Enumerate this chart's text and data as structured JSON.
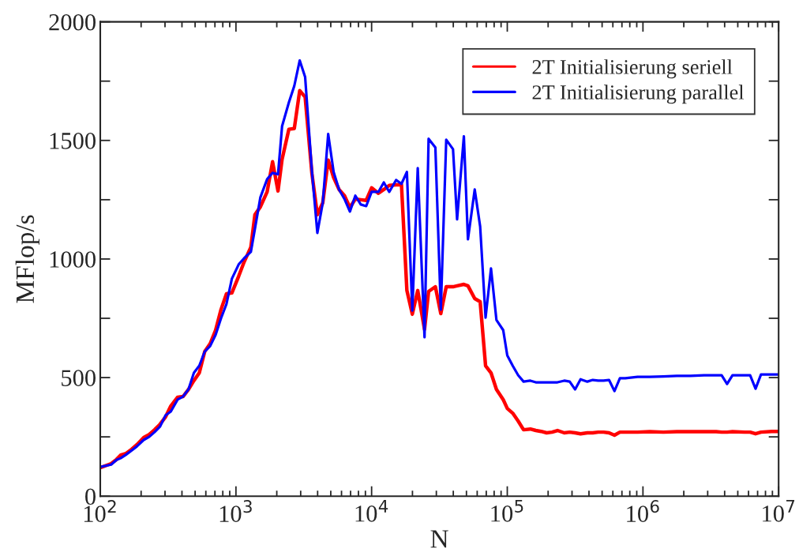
{
  "chart_data": {
    "type": "line",
    "xlabel": "N",
    "ylabel": "MFlop/s",
    "log": "x",
    "xlim": [
      100,
      10000000
    ],
    "ylim": [
      0,
      2000
    ],
    "xticks": [
      {
        "value": 100,
        "label": "10$^{2}$"
      },
      {
        "value": 1000,
        "label": "10$^{3}$"
      },
      {
        "value": 10000,
        "label": "10$^{4}$"
      },
      {
        "value": 100000,
        "label": "10$^{5}$"
      },
      {
        "value": 1000000,
        "label": "10$^{6}$"
      },
      {
        "value": 10000000,
        "label": "10$^{7}$"
      }
    ],
    "yticks": [
      0,
      {
        "value": 250,
        "label": null
      },
      500,
      {
        "value": 750,
        "label": null
      },
      1000,
      {
        "value": 1250,
        "label": null
      },
      1500,
      {
        "value": 1750,
        "label": null
      },
      2000
    ],
    "grid": false,
    "legend": "top right",
    "marker": "none",
    "line_style": "solid",
    "x": [
      100,
      120.2,
      131.8,
      141.3,
      154.9,
      169.8,
      186.2,
      208.9,
      229.1,
      251.2,
      275.4,
      302,
      331.1,
      371.5,
      407.4,
      446.7,
      489.8,
      537,
      588.8,
      645.7,
      707.9,
      776.2,
      851.1,
      933.3,
      1047,
      1148,
      1288,
      1380,
      1514,
      1698,
      1862,
      2042,
      2188,
      2455,
      2692,
      2951,
      3236,
      3631,
      3981,
      4365,
      4786,
      5248,
      5754,
      6310,
      6918,
      7586,
      8318,
      9120,
      10000,
      11220,
      12300,
      13490,
      15140,
      16600,
      18200,
      19950,
      21880,
      24550,
      26300,
      29510,
      32360,
      35480,
      39810,
      42660,
      47860,
      51290,
      57540,
      63100,
      69180,
      75860,
      83180,
      93330,
      100000,
      109600,
      120200,
      131800,
      147900,
      162200,
      177800,
      195000,
      213800,
      234400,
      263000,
      288400,
      316200,
      346700,
      389000,
      426600,
      467700,
      512900,
      562300,
      616600,
      676100,
      741300,
      912000,
      1122000,
      1413000,
      1778000,
      2239000,
      2818000,
      3467000,
      3802000,
      4169000,
      4571000,
      5623000,
      6166000,
      6761000,
      7413000,
      8913000,
      10000000
    ],
    "series": [
      {
        "name": "2T Initialisierung seriell",
        "color": "#ff0000",
        "values": [
          120,
          137,
          155,
          173,
          180,
          197,
          217,
          247,
          260,
          280,
          303,
          333,
          380,
          417,
          420,
          450,
          487,
          520,
          610,
          643,
          700,
          787,
          853,
          857,
          927,
          987,
          1050,
          1187,
          1220,
          1283,
          1410,
          1287,
          1420,
          1547,
          1550,
          1710,
          1683,
          1360,
          1187,
          1237,
          1417,
          1343,
          1293,
          1267,
          1217,
          1253,
          1250,
          1247,
          1300,
          1277,
          1293,
          1310,
          1313,
          1313,
          867,
          767,
          867,
          703,
          863,
          883,
          770,
          883,
          883,
          887,
          893,
          887,
          833,
          820,
          550,
          520,
          450,
          407,
          370,
          350,
          317,
          280,
          283,
          277,
          273,
          267,
          270,
          277,
          267,
          270,
          267,
          263,
          267,
          267,
          270,
          270,
          267,
          257,
          270,
          270,
          270,
          272,
          270,
          272,
          272,
          272,
          272,
          270,
          270,
          272,
          270,
          270,
          263,
          270,
          273,
          273
        ]
      },
      {
        "name": "2T Initialisierung parallel",
        "color": "#0000ff",
        "values": [
          123,
          133,
          153,
          160,
          175,
          192,
          210,
          237,
          250,
          270,
          293,
          340,
          357,
          407,
          420,
          450,
          520,
          550,
          610,
          633,
          680,
          750,
          810,
          917,
          977,
          1003,
          1030,
          1127,
          1260,
          1337,
          1363,
          1357,
          1560,
          1660,
          1730,
          1837,
          1767,
          1370,
          1110,
          1237,
          1527,
          1367,
          1293,
          1253,
          1200,
          1267,
          1230,
          1223,
          1283,
          1283,
          1323,
          1283,
          1333,
          1317,
          1367,
          783,
          1383,
          670,
          1507,
          1470,
          787,
          1503,
          1463,
          1167,
          1517,
          1083,
          1293,
          1137,
          753,
          960,
          743,
          700,
          593,
          550,
          510,
          483,
          487,
          480,
          480,
          480,
          480,
          480,
          487,
          483,
          450,
          493,
          483,
          490,
          487,
          487,
          490,
          443,
          497,
          497,
          503,
          503,
          505,
          507,
          507,
          510,
          510,
          510,
          473,
          510,
          510,
          510,
          453,
          513,
          513,
          513
        ]
      }
    ]
  }
}
